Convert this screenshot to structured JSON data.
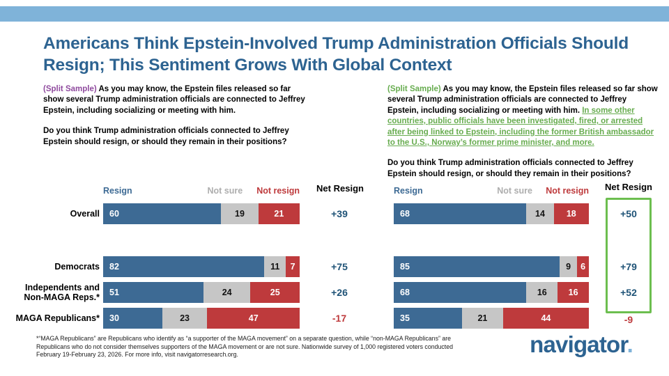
{
  "title": "Americans Think Epstein-Involved Trump Administration Officials Should Resign; This Sentiment Grows With Global Context",
  "questions": {
    "left": {
      "split_label": "(Split Sample)",
      "intro": "As you may know, the Epstein files released so far show several Trump administration officials are connected to Jeffrey Epstein, including socializing or meeting with him.",
      "question": "Do you think Trump administration officials connected to Jeffrey Epstein should resign, or should they remain in their positions?"
    },
    "right": {
      "split_label": "(Split Sample)",
      "intro": "As you may know, the Epstein files released so far show several Trump administration officials are connected to Jeffrey Epstein, including socializing or meeting with him.",
      "context": "In some other countries, public officials have been investigated, fired, or arrested after being linked to Epstein, including the former British ambassador to the U.S., Norway’s former prime minister, and more.",
      "question": "Do you think Trump administration officials connected to Jeffrey Epstein should resign, or should they remain in their positions?"
    }
  },
  "chart_data": [
    {
      "type": "bar",
      "orientation": "horizontal-stacked",
      "xlim": [
        0,
        100
      ],
      "categories": [
        "Overall",
        "Democrats",
        "Independents and Non-MAGA Reps.*",
        "MAGA Republicans*"
      ],
      "series": [
        {
          "name": "Resign",
          "color": "#3D6A94",
          "values": [
            60,
            82,
            51,
            30
          ]
        },
        {
          "name": "Not sure",
          "color": "#C6C6C6",
          "values": [
            19,
            11,
            24,
            23
          ]
        },
        {
          "name": "Not resign",
          "color": "#BE3A3C",
          "values": [
            21,
            7,
            25,
            47
          ]
        }
      ],
      "net_label": "Net Resign",
      "net_values": [
        "+39",
        "+75",
        "+26",
        "-17"
      ]
    },
    {
      "type": "bar",
      "orientation": "horizontal-stacked",
      "xlim": [
        0,
        100
      ],
      "categories": [
        "Overall",
        "Democrats",
        "Independents and Non-MAGA Reps.*",
        "MAGA Republicans*"
      ],
      "series": [
        {
          "name": "Resign",
          "color": "#3D6A94",
          "values": [
            68,
            85,
            68,
            35
          ]
        },
        {
          "name": "Not sure",
          "color": "#C6C6C6",
          "values": [
            14,
            9,
            16,
            21
          ]
        },
        {
          "name": "Not resign",
          "color": "#BE3A3C",
          "values": [
            18,
            6,
            16,
            44
          ]
        }
      ],
      "net_label": "Net Resign",
      "net_values": [
        "+50",
        "+79",
        "+52",
        "-9"
      ],
      "net_highlight": "green box around positive net values"
    }
  ],
  "footnote": "*“MAGA Republicans” are Republicans who identify as “a supporter of the MAGA movement” on a separate question, while “non-MAGA Republicans” are Republicans who do not consider themselves supporters of the MAGA movement or are not sure. Nationwide survey of 1,000 registered voters conducted February 19-February 23, 2026. For more info, visit navigatorresearch.org.",
  "logo": {
    "text": "navigator",
    "dot": "."
  },
  "colors": {
    "stripe": "#7FB3D9",
    "title": "#2D6391",
    "resign_bar": "#3D6A94",
    "not_sure_bar": "#C6C6C6",
    "not_resign_bar": "#BE3A3C",
    "split_sample_left": "#8F4A9E",
    "split_sample_right": "#67AC4F",
    "net_positive": "#1F5377",
    "net_negative": "#BE3A3C",
    "highlight_box": "#6CBE4F"
  }
}
